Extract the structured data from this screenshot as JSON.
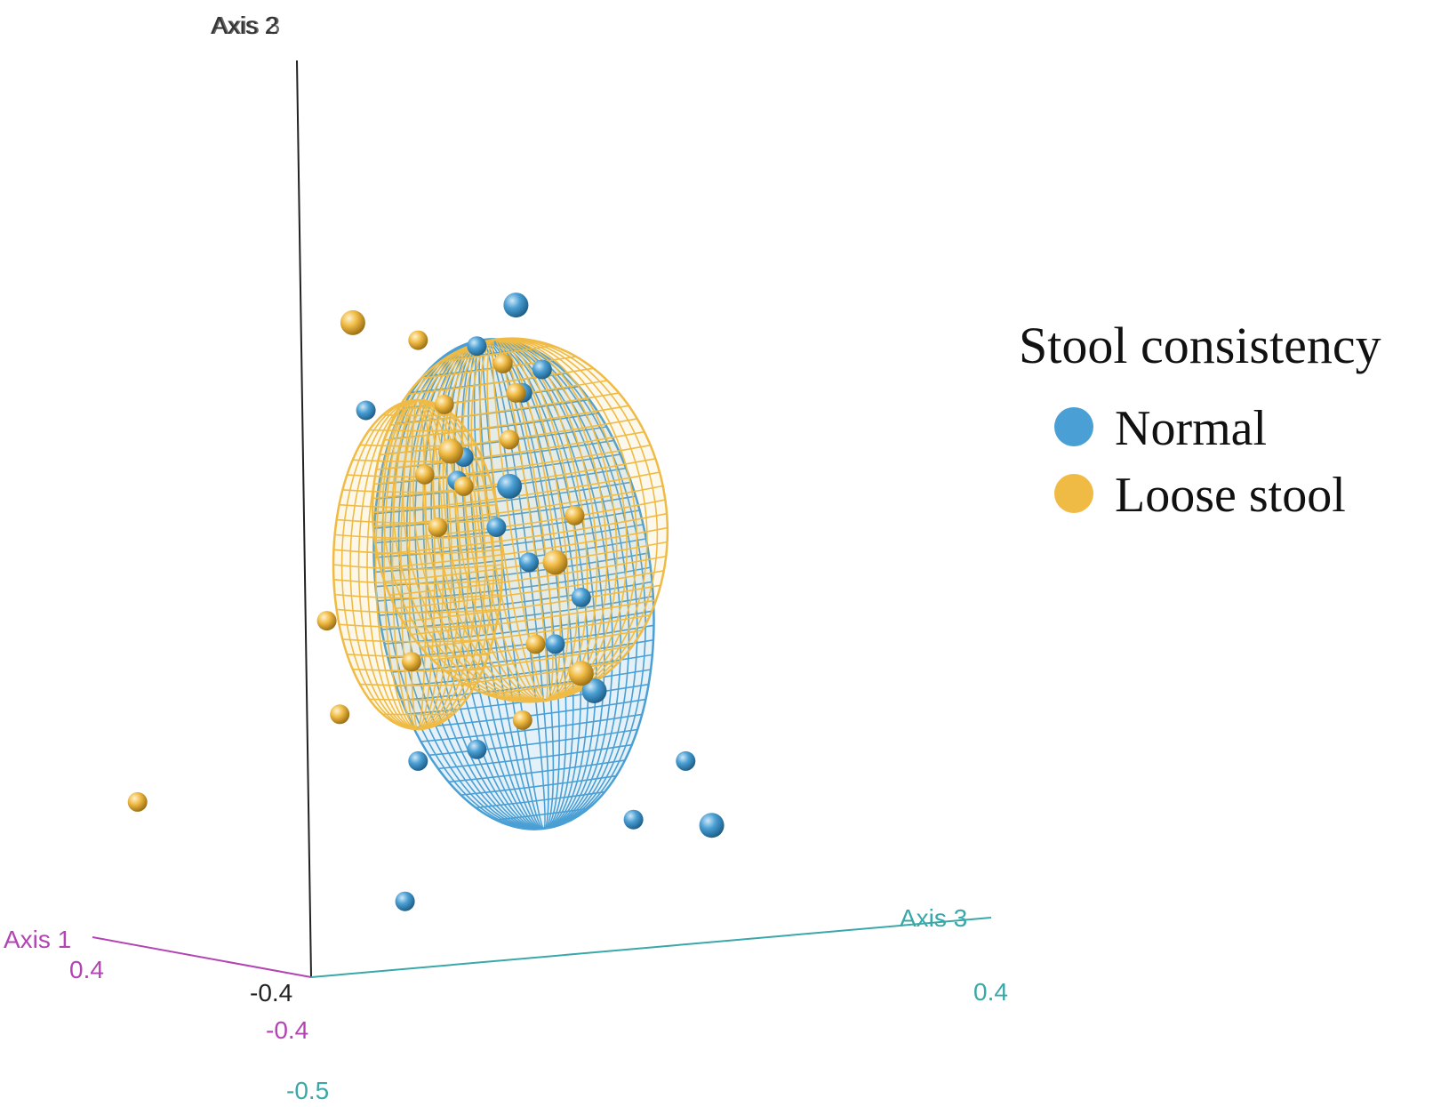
{
  "chart_data": {
    "type": "scatter",
    "subtype": "3d-pcoa-with-confidence-ellipsoids",
    "legend": {
      "title": "Stool consistency",
      "position": "right",
      "entries": [
        {
          "label": "Normal",
          "color": "#4a9fd4"
        },
        {
          "label": "Loose stool",
          "color": "#f0bb45"
        }
      ]
    },
    "axes": {
      "vertical": {
        "label": "Axis 2",
        "overlay_label": "Axis 3"
      },
      "axis1": {
        "label": "Axis 1",
        "tick_near": "0.4",
        "tick_origin": "-0.4",
        "color": "#b344b3"
      },
      "axis3": {
        "label": "Axis 3",
        "tick_far": "0.4",
        "tick_origin": "-0.5",
        "color": "#3aa8a8"
      },
      "origin_tick": "-0.4"
    },
    "series": [
      {
        "name": "Normal",
        "color": "#4a9fd4",
        "points": [
          {
            "x": 0.18,
            "y": 0.36
          },
          {
            "x": 0.12,
            "y": 0.29
          },
          {
            "x": -0.05,
            "y": 0.18
          },
          {
            "x": 0.22,
            "y": 0.25
          },
          {
            "x": 0.1,
            "y": 0.1
          },
          {
            "x": 0.17,
            "y": 0.05
          },
          {
            "x": 0.15,
            "y": -0.02
          },
          {
            "x": 0.2,
            "y": -0.08
          },
          {
            "x": 0.28,
            "y": -0.14
          },
          {
            "x": 0.24,
            "y": -0.22
          },
          {
            "x": 0.3,
            "y": -0.3
          },
          {
            "x": 0.03,
            "y": -0.42
          },
          {
            "x": 0.12,
            "y": -0.4
          },
          {
            "x": 0.36,
            "y": -0.52
          },
          {
            "x": 0.44,
            "y": -0.42
          },
          {
            "x": 0.48,
            "y": -0.53
          },
          {
            "x": 0.01,
            "y": -0.66
          },
          {
            "x": 0.19,
            "y": 0.21
          },
          {
            "x": 0.09,
            "y": 0.06
          }
        ]
      },
      {
        "name": "Loose stool",
        "color": "#f0bb45",
        "points": [
          {
            "x": -0.07,
            "y": 0.33
          },
          {
            "x": 0.03,
            "y": 0.3
          },
          {
            "x": 0.16,
            "y": 0.26
          },
          {
            "x": 0.18,
            "y": 0.21
          },
          {
            "x": 0.07,
            "y": 0.19
          },
          {
            "x": 0.08,
            "y": 0.11
          },
          {
            "x": 0.17,
            "y": 0.13
          },
          {
            "x": 0.1,
            "y": 0.05
          },
          {
            "x": 0.04,
            "y": 0.07
          },
          {
            "x": 0.06,
            "y": -0.02
          },
          {
            "x": 0.24,
            "y": -0.08
          },
          {
            "x": 0.21,
            "y": -0.22
          },
          {
            "x": 0.27,
            "y": 0.0
          },
          {
            "x": 0.02,
            "y": -0.25
          },
          {
            "x": -0.11,
            "y": -0.18
          },
          {
            "x": 0.28,
            "y": -0.27
          },
          {
            "x": 0.19,
            "y": -0.35
          },
          {
            "x": -0.09,
            "y": -0.34
          },
          {
            "x": -0.4,
            "y": -0.49
          }
        ]
      }
    ],
    "ellipsoids": [
      {
        "group": "Normal",
        "color": "#4a9fd4"
      },
      {
        "group": "Loose stool",
        "color": "#f0bb45"
      }
    ]
  },
  "labels": {
    "top_axis_a": "Axis 2",
    "top_axis_b": "Axis 3",
    "axis1_label": "Axis 1",
    "axis3_label": "Axis 3",
    "tick_origin_vertical": "-0.4",
    "tick_axis1_near": "0.4",
    "tick_axis1_origin": "-0.4",
    "tick_axis3_far": "0.4",
    "tick_axis3_origin": "-0.5"
  }
}
